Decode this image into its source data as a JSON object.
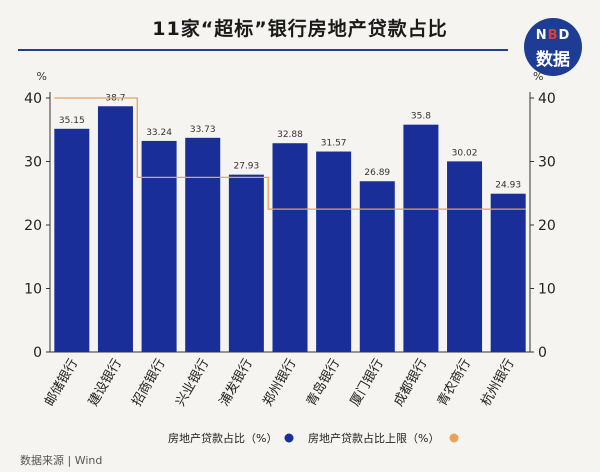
{
  "title": "11家“超标”银行房地产贷款占比",
  "logo": {
    "line1_a": "N",
    "line1_dot": "B",
    "line1_b": "D",
    "line2": "数据"
  },
  "source": "数据来源 | Wind",
  "colors": {
    "bar": "#1a2e9a",
    "line": "#e8a25b",
    "title_rule": "#1f3f8f"
  },
  "chart_data": {
    "type": "bar",
    "categories": [
      "邮储银行",
      "建设银行",
      "招商银行",
      "兴业银行",
      "浦发银行",
      "郑州银行",
      "青岛银行",
      "厦门银行",
      "成都银行",
      "青农商行",
      "杭州银行"
    ],
    "series": [
      {
        "name": "房地产贷款占比（%）",
        "type": "bar",
        "values": [
          35.15,
          38.7,
          33.24,
          33.73,
          27.93,
          32.88,
          31.57,
          26.89,
          35.8,
          30.02,
          24.93
        ]
      },
      {
        "name": "房地产贷款占比上限（%）",
        "type": "step-line",
        "values": [
          40,
          40,
          27.5,
          27.5,
          27.5,
          22.5,
          22.5,
          22.5,
          22.5,
          22.5,
          22.5
        ]
      }
    ],
    "data_labels": [
      "35.15",
      "38.7",
      "33.24",
      "33.73",
      "27.93",
      "32.88",
      "31.57",
      "26.89",
      "35.8",
      "30.02",
      "24.93"
    ],
    "ylim": [
      0,
      40
    ],
    "yticks": [
      "0",
      "10",
      "20",
      "30",
      "40"
    ],
    "yunit_left": "%",
    "yunit_right": "%",
    "legend_position": "bottom-right",
    "grid": false
  }
}
